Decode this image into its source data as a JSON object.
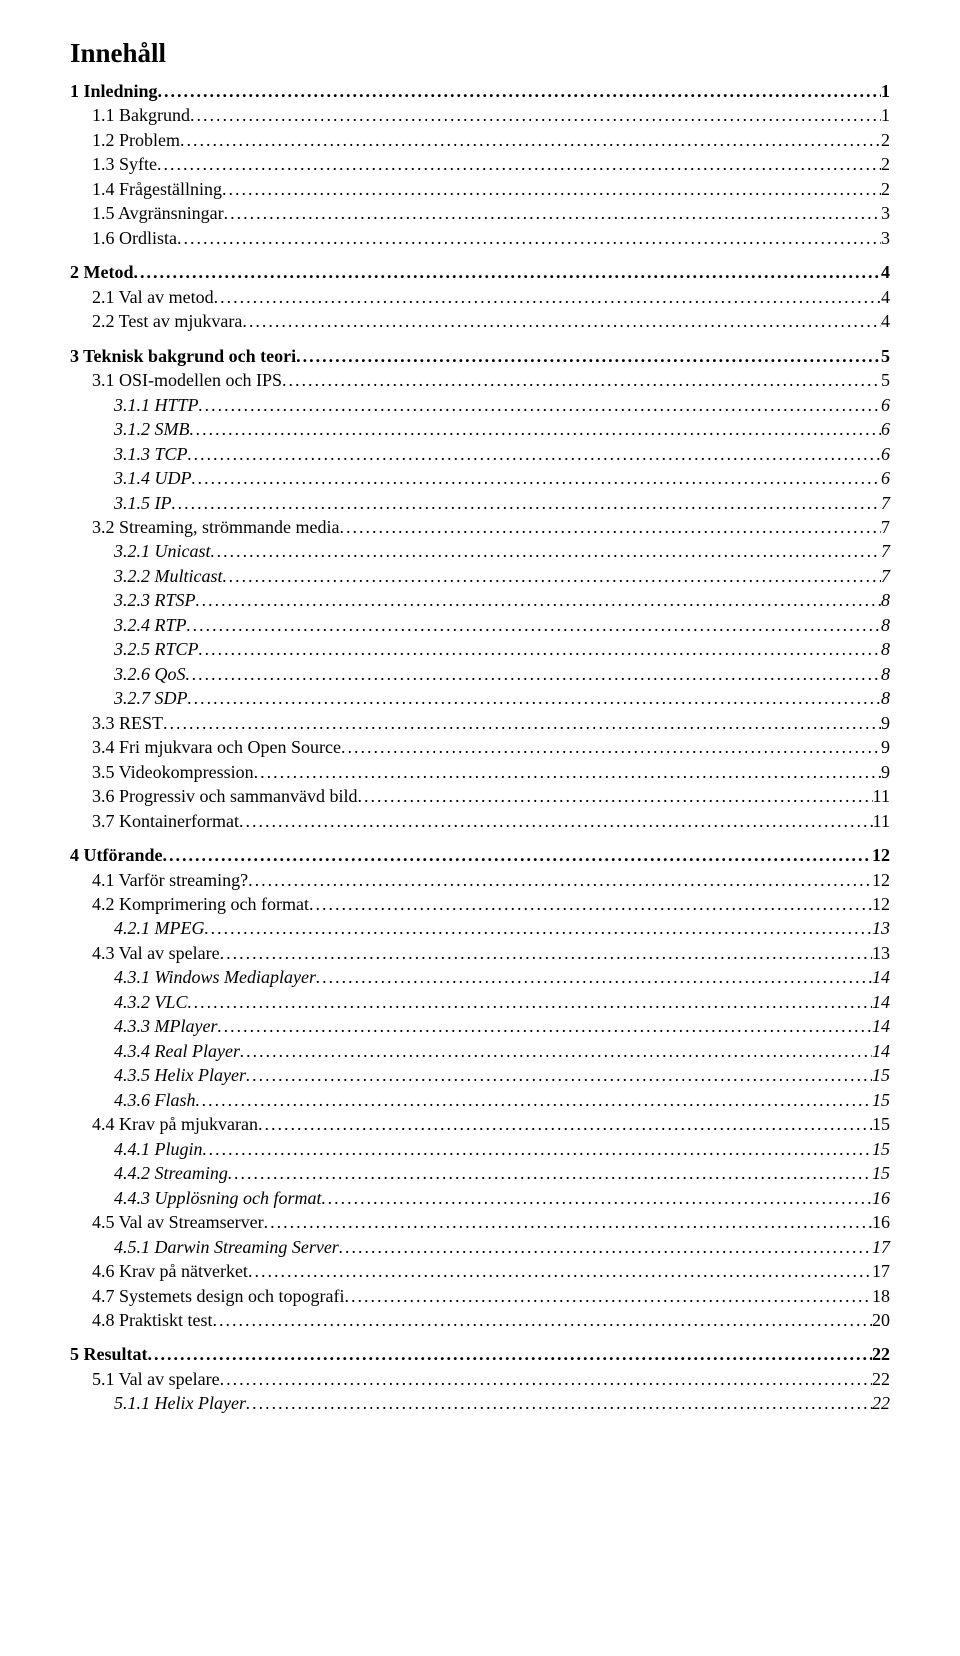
{
  "title": "Innehåll",
  "toc": [
    {
      "level": 0,
      "label": "1 Inledning",
      "page": "1"
    },
    {
      "level": 1,
      "label": "1.1 Bakgrund",
      "page": "1"
    },
    {
      "level": 1,
      "label": "1.2 Problem",
      "page": "2"
    },
    {
      "level": 1,
      "label": "1.3 Syfte",
      "page": "2"
    },
    {
      "level": 1,
      "label": "1.4 Frågeställning",
      "page": "2"
    },
    {
      "level": 1,
      "label": "1.5 Avgränsningar",
      "page": "3"
    },
    {
      "level": 1,
      "label": "1.6 Ordlista",
      "page": "3"
    },
    {
      "level": 0,
      "label": "2 Metod",
      "page": "4"
    },
    {
      "level": 1,
      "label": "2.1 Val av metod",
      "page": "4"
    },
    {
      "level": 1,
      "label": "2.2 Test av mjukvara",
      "page": "4"
    },
    {
      "level": 0,
      "label": "3 Teknisk bakgrund och teori",
      "page": "5"
    },
    {
      "level": 1,
      "label": "3.1 OSI-modellen och IPS",
      "page": "5"
    },
    {
      "level": 2,
      "label": "3.1.1 HTTP",
      "page": "6"
    },
    {
      "level": 2,
      "label": "3.1.2 SMB",
      "page": "6"
    },
    {
      "level": 2,
      "label": "3.1.3 TCP",
      "page": "6"
    },
    {
      "level": 2,
      "label": "3.1.4 UDP",
      "page": "6"
    },
    {
      "level": 2,
      "label": "3.1.5 IP",
      "page": "7"
    },
    {
      "level": 1,
      "label": "3.2 Streaming, strömmande media",
      "page": "7"
    },
    {
      "level": 2,
      "label": "3.2.1 Unicast",
      "page": "7"
    },
    {
      "level": 2,
      "label": "3.2.2 Multicast",
      "page": "7"
    },
    {
      "level": 2,
      "label": "3.2.3 RTSP",
      "page": "8"
    },
    {
      "level": 2,
      "label": "3.2.4 RTP",
      "page": "8"
    },
    {
      "level": 2,
      "label": "3.2.5 RTCP",
      "page": "8"
    },
    {
      "level": 2,
      "label": "3.2.6 QoS",
      "page": "8"
    },
    {
      "level": 2,
      "label": "3.2.7 SDP",
      "page": "8"
    },
    {
      "level": 1,
      "label": "3.3 REST",
      "page": "9"
    },
    {
      "level": 1,
      "label": "3.4 Fri mjukvara och Open Source",
      "page": "9"
    },
    {
      "level": 1,
      "label": "3.5 Videokompression",
      "page": "9"
    },
    {
      "level": 1,
      "label": "3.6 Progressiv och sammanvävd bild",
      "page": "11"
    },
    {
      "level": 1,
      "label": "3.7 Kontainerformat",
      "page": "11"
    },
    {
      "level": 0,
      "label": "4 Utförande",
      "page": "12"
    },
    {
      "level": 1,
      "label": "4.1 Varför streaming?",
      "page": "12"
    },
    {
      "level": 1,
      "label": "4.2 Komprimering och format",
      "page": "12"
    },
    {
      "level": 2,
      "label": "4.2.1 MPEG",
      "page": "13"
    },
    {
      "level": 1,
      "label": "4.3 Val av spelare",
      "page": "13"
    },
    {
      "level": 2,
      "label": "4.3.1 Windows Mediaplayer",
      "page": "14"
    },
    {
      "level": 2,
      "label": "4.3.2 VLC",
      "page": "14"
    },
    {
      "level": 2,
      "label": "4.3.3 MPlayer",
      "page": "14"
    },
    {
      "level": 2,
      "label": "4.3.4 Real Player",
      "page": "14"
    },
    {
      "level": 2,
      "label": "4.3.5 Helix Player",
      "page": "15"
    },
    {
      "level": 2,
      "label": "4.3.6 Flash",
      "page": "15"
    },
    {
      "level": 1,
      "label": "4.4 Krav på mjukvaran",
      "page": "15"
    },
    {
      "level": 2,
      "label": "4.4.1 Plugin",
      "page": "15"
    },
    {
      "level": 2,
      "label": "4.4.2 Streaming",
      "page": "15"
    },
    {
      "level": 2,
      "label": "4.4.3 Upplösning och format",
      "page": "16"
    },
    {
      "level": 1,
      "label": "4.5 Val av Streamserver",
      "page": "16"
    },
    {
      "level": 2,
      "label": "4.5.1 Darwin Streaming Server",
      "page": "17"
    },
    {
      "level": 1,
      "label": "4.6 Krav på nätverket",
      "page": "17"
    },
    {
      "level": 1,
      "label": "4.7 Systemets design och topografi",
      "page": "18"
    },
    {
      "level": 1,
      "label": "4.8 Praktiskt test",
      "page": "20"
    },
    {
      "level": 0,
      "label": "5 Resultat",
      "page": "22"
    },
    {
      "level": 1,
      "label": "5.1 Val av spelare",
      "page": "22"
    },
    {
      "level": 2,
      "label": "5.1.1 Helix Player",
      "page": "22"
    }
  ]
}
